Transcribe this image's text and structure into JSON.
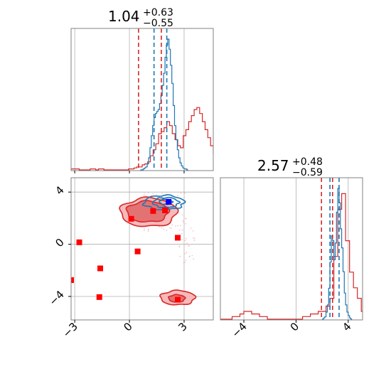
{
  "chart_data": {
    "type": "corner",
    "grid": true,
    "colors": {
      "red": "#d62728",
      "blue": "#1f77b4",
      "red_fill_outer": "#f6b3b4",
      "red_fill_inner": "#e06a6b",
      "grid": "#b0b0b0",
      "square_red": "#ff0000",
      "square_blue": "#0000ff"
    },
    "params": [
      {
        "title_value": "1.04",
        "title_plus": "+0.63",
        "title_minus": "−0.55",
        "range": [
          -3.2,
          4.6
        ]
      },
      {
        "title_value": "2.57",
        "title_plus": "+0.48",
        "title_minus": "−0.59",
        "range": [
          -5.8,
          5.1
        ]
      }
    ],
    "x_ticks": [
      {
        "value": -3,
        "label": "−3"
      },
      {
        "value": 0,
        "label": "0"
      },
      {
        "value": 3,
        "label": "3"
      }
    ],
    "y_ticks": [
      {
        "value": 4,
        "label": "4"
      },
      {
        "value": 0,
        "label": "0"
      },
      {
        "value": -4,
        "label": "−4"
      }
    ],
    "p2_x_ticks": [
      {
        "value": -4,
        "label": "−4"
      },
      {
        "value": 0,
        "label": "0"
      },
      {
        "value": 4,
        "label": "4"
      }
    ],
    "hist1": {
      "red_lines": [
        0.5,
        1.75
      ],
      "blue_lines": [
        1.35,
        2.05
      ],
      "red_hist": {
        "x0": -3.2,
        "bin_width": 0.15,
        "counts": [
          1,
          1,
          1,
          0,
          0,
          0,
          0,
          1,
          1,
          0,
          1,
          1,
          0,
          0,
          0,
          0,
          0,
          0,
          0,
          0,
          0,
          1,
          1,
          2,
          3,
          3,
          5,
          6,
          8,
          14,
          20,
          26,
          36,
          38,
          42,
          48,
          44,
          36,
          30,
          24,
          22,
          34,
          40,
          48,
          54,
          60,
          62,
          56,
          48,
          40,
          32,
          24,
          16,
          9,
          6,
          4,
          3,
          2,
          1,
          1
        ]
      },
      "blue_hist": {
        "x0": 0.6,
        "bin_width": 0.075,
        "counts": [
          0,
          0,
          1,
          2,
          3,
          6,
          12,
          22,
          34,
          44,
          52,
          56,
          58,
          60,
          66,
          74,
          84,
          96,
          112,
          124,
          130,
          120,
          104,
          86,
          64,
          44,
          30,
          20,
          12,
          7,
          4,
          2,
          1,
          1,
          0
        ]
      }
    },
    "hist2": {
      "red_lines": [
        1.95,
        2.8
      ],
      "blue_lines": [
        2.6,
        3.3
      ],
      "red_hist": {
        "x0": -5.8,
        "bin_width": 0.3,
        "counts": [
          0,
          0,
          0,
          1,
          1,
          2,
          3,
          3,
          2,
          2,
          1,
          1,
          0,
          0,
          0,
          0,
          0,
          0,
          0,
          0,
          0,
          1,
          1,
          2,
          2,
          3,
          3,
          5,
          8,
          24,
          42,
          48,
          30,
          18,
          12,
          8,
          3,
          1
        ]
      },
      "blue_hist": {
        "x0": 2.0,
        "bin_width": 0.1,
        "counts": [
          0,
          1,
          2,
          6,
          12,
          26,
          48,
          70,
          66,
          50,
          64,
          90,
          110,
          98,
          76,
          60,
          40,
          22,
          12,
          6,
          3,
          1,
          0
        ]
      }
    },
    "scatter_red_squares": [
      {
        "x": -2.75,
        "y": 0.15
      },
      {
        "x": 0.1,
        "y": 1.95
      },
      {
        "x": 1.3,
        "y": 2.55
      },
      {
        "x": 1.95,
        "y": 2.6
      },
      {
        "x": 2.65,
        "y": 0.5
      },
      {
        "x": 0.45,
        "y": -0.55
      },
      {
        "x": -1.6,
        "y": -1.85
      },
      {
        "x": -3.2,
        "y": -2.75
      },
      {
        "x": -1.65,
        "y": -4.05
      },
      {
        "x": 2.65,
        "y": -4.25
      }
    ],
    "scatter_blue_squares": [
      {
        "x": 2.15,
        "y": 3.25
      }
    ],
    "red_contour_main": {
      "levels": [
        {
          "cx": 1.05,
          "cy": 2.45,
          "rx": 1.55,
          "ry": 1.1,
          "role": "outer"
        },
        {
          "cx": 1.0,
          "cy": 2.5,
          "rx": 1.15,
          "ry": 0.8,
          "role": "inner"
        }
      ]
    },
    "red_contour_secondary": {
      "levels": [
        {
          "cx": 2.65,
          "cy": -4.1,
          "rx": 0.95,
          "ry": 0.55,
          "role": "outer"
        },
        {
          "cx": 2.6,
          "cy": -4.15,
          "rx": 0.45,
          "ry": 0.28,
          "role": "inner"
        }
      ]
    },
    "blue_contour": {
      "levels": [
        {
          "cx": 1.9,
          "cy": 3.2,
          "rx": 1.1,
          "ry": 0.55
        },
        {
          "cx": 2.0,
          "cy": 3.2,
          "rx": 0.7,
          "ry": 0.38
        },
        {
          "cx": 2.0,
          "cy": 3.25,
          "rx": 0.35,
          "ry": 0.2
        }
      ]
    }
  }
}
